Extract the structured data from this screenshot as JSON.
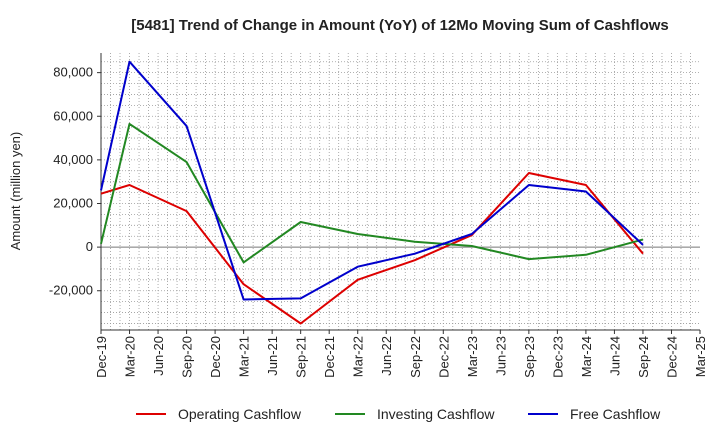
{
  "chart_data": {
    "type": "line",
    "title": "[5481]  Trend of Change in Amount (YoY) of 12Mo Moving Sum of Cashflows",
    "xlabel": "",
    "ylabel": "Amount (million yen)",
    "categories": [
      "Dec-19",
      "Mar-20",
      "Jun-20",
      "Sep-20",
      "Dec-20",
      "Mar-21",
      "Jun-21",
      "Sep-21",
      "Dec-21",
      "Mar-22",
      "Jun-22",
      "Sep-22",
      "Dec-22",
      "Mar-23",
      "Jun-23",
      "Sep-23",
      "Dec-23",
      "Mar-24",
      "Jun-24",
      "Sep-24",
      "Dec-24",
      "Mar-25"
    ],
    "y_ticks": [
      -20000,
      0,
      20000,
      40000,
      60000,
      80000
    ],
    "y_tick_labels": [
      "-20,000",
      "0",
      "20,000",
      "40,000",
      "60,000",
      "80,000"
    ],
    "ylim": [
      -38000,
      89000
    ],
    "grid": true,
    "legend_position": "bottom",
    "series": [
      {
        "name": "Operating Cashflow",
        "color": "#dd0000",
        "values": [
          24500,
          28500,
          null,
          16500,
          null,
          -17000,
          null,
          -35000,
          null,
          -15000,
          null,
          -6000,
          null,
          5500,
          null,
          34000,
          null,
          28500,
          null,
          -3000,
          null,
          null
        ]
      },
      {
        "name": "Investing Cashflow",
        "color": "#228822",
        "values": [
          1500,
          56500,
          null,
          39000,
          null,
          -7000,
          null,
          11500,
          null,
          6000,
          null,
          2500,
          null,
          500,
          null,
          -5500,
          null,
          -3500,
          null,
          3500,
          null,
          null
        ]
      },
      {
        "name": "Free Cashflow",
        "color": "#0000cc",
        "values": [
          26000,
          85000,
          null,
          55500,
          null,
          -24000,
          null,
          -23500,
          null,
          -9000,
          null,
          -3000,
          null,
          6000,
          null,
          28500,
          null,
          25500,
          null,
          1000,
          null,
          null
        ]
      }
    ]
  }
}
